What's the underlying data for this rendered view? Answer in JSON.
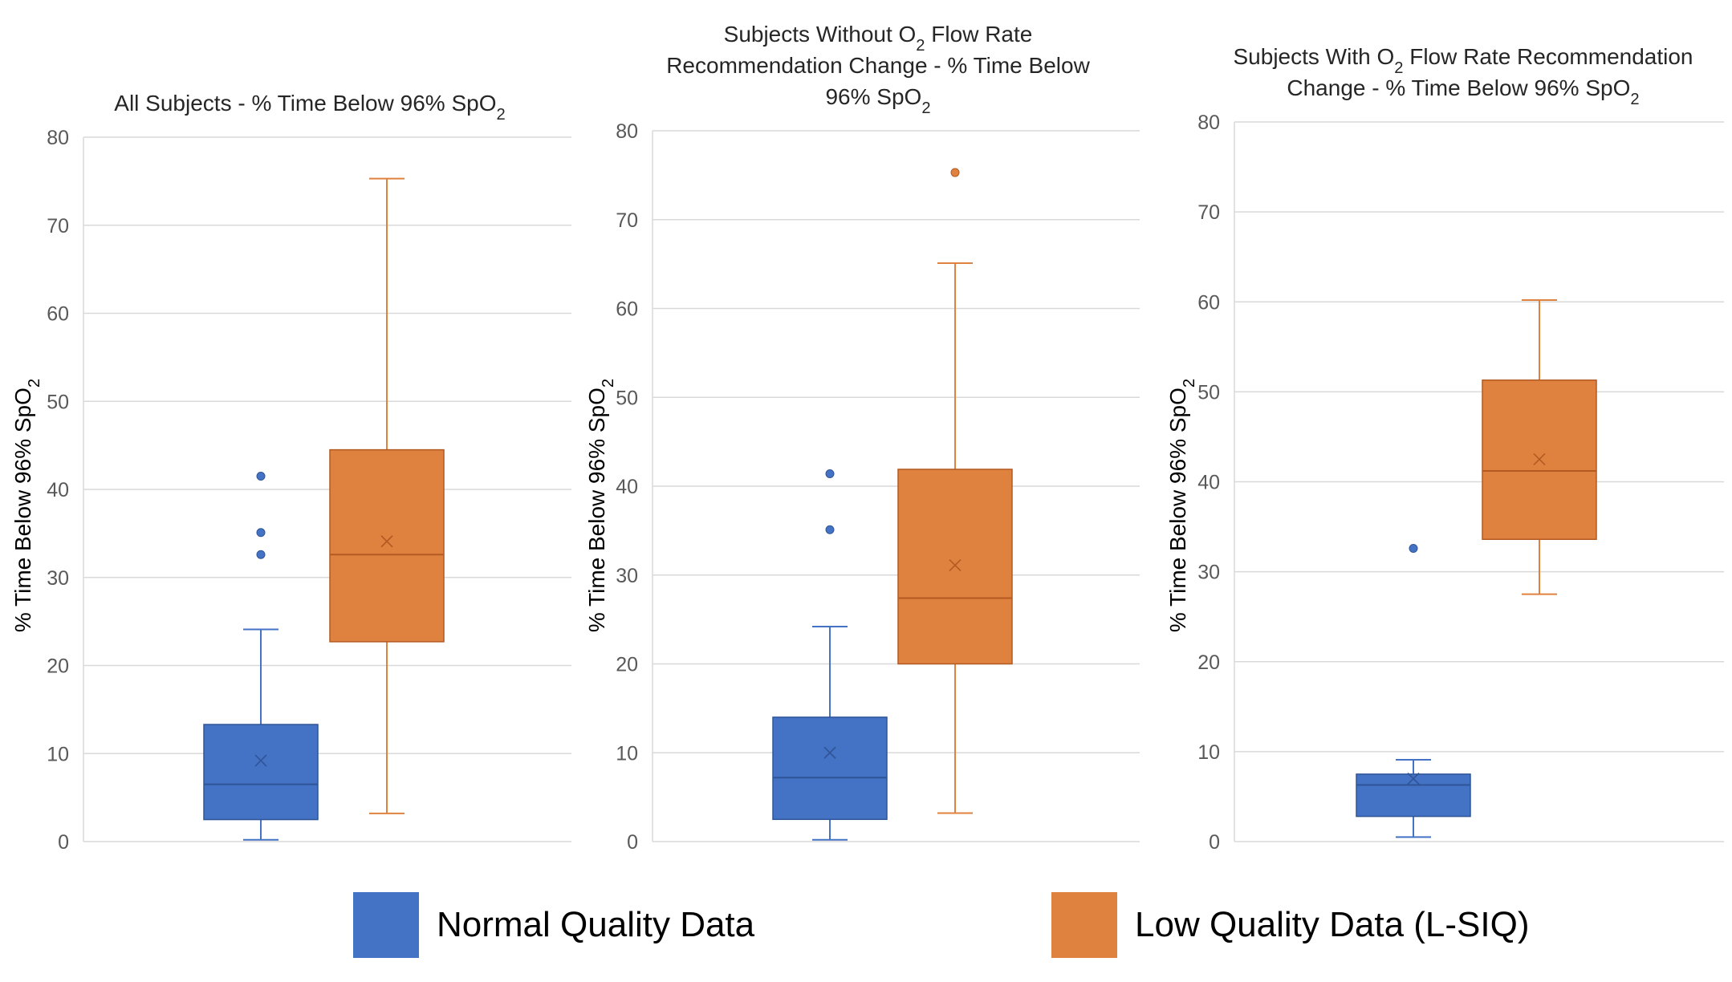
{
  "chart_data": [
    {
      "type": "box",
      "title_lines": [
        "All Subjects - % Time Below 96% SpO2"
      ],
      "ylabel": "% Time Below 96% SpO2",
      "ylim": [
        0,
        80
      ],
      "yticks": [
        0,
        10,
        20,
        30,
        40,
        50,
        60,
        70,
        80
      ],
      "grid": true,
      "series": [
        {
          "name": "Normal Quality Data",
          "color": "#4472C4",
          "min": 0.2,
          "q1": 2.5,
          "median": 6.5,
          "q3": 13.3,
          "max": 24.1,
          "mean": 9.2,
          "outliers": [
            32.6,
            35.1,
            41.5
          ]
        },
        {
          "name": "Low Quality Data (L-SIQ)",
          "color": "#E0823F",
          "min": 3.2,
          "q1": 22.7,
          "median": 32.6,
          "q3": 44.5,
          "max": 75.3,
          "mean": 34.1,
          "outliers": []
        }
      ]
    },
    {
      "type": "box",
      "title_lines": [
        "Subjects Without O2 Flow Rate",
        "Recommendation Change - % Time Below",
        "96% SpO2"
      ],
      "ylabel": "% Time Below 96% SpO2",
      "ylim": [
        0,
        80
      ],
      "yticks": [
        0,
        10,
        20,
        30,
        40,
        50,
        60,
        70,
        80
      ],
      "grid": true,
      "series": [
        {
          "name": "Normal Quality Data",
          "color": "#4472C4",
          "min": 0.2,
          "q1": 2.5,
          "median": 7.2,
          "q3": 14.0,
          "max": 24.2,
          "mean": 10.0,
          "outliers": [
            35.1,
            41.4
          ]
        },
        {
          "name": "Low Quality Data (L-SIQ)",
          "color": "#E0823F",
          "min": 3.2,
          "q1": 20.0,
          "median": 27.4,
          "q3": 41.9,
          "max": 65.1,
          "mean": 31.1,
          "outliers": [
            75.3
          ]
        }
      ]
    },
    {
      "type": "box",
      "title_lines": [
        "Subjects With O2 Flow Rate Recommendation",
        "Change - % Time Below 96% SpO2"
      ],
      "ylabel": "% Time Below 96% SpO2",
      "ylim": [
        0,
        80
      ],
      "yticks": [
        0,
        10,
        20,
        30,
        40,
        50,
        60,
        70,
        80
      ],
      "grid": true,
      "series": [
        {
          "name": "Normal Quality Data",
          "color": "#4472C4",
          "min": 0.5,
          "q1": 2.8,
          "median": 6.3,
          "q3": 7.5,
          "max": 9.1,
          "mean": 7.0,
          "outliers": [
            32.6
          ]
        },
        {
          "name": "Low Quality Data (L-SIQ)",
          "color": "#E0823F",
          "min": 27.5,
          "q1": 33.6,
          "median": 41.2,
          "q3": 51.3,
          "max": 60.2,
          "mean": 42.5,
          "outliers": []
        }
      ]
    }
  ],
  "legend": [
    {
      "label": "Normal Quality Data",
      "color": "#4472C4"
    },
    {
      "label": "Low Quality Data (L-SIQ)",
      "color": "#E0823F"
    }
  ]
}
